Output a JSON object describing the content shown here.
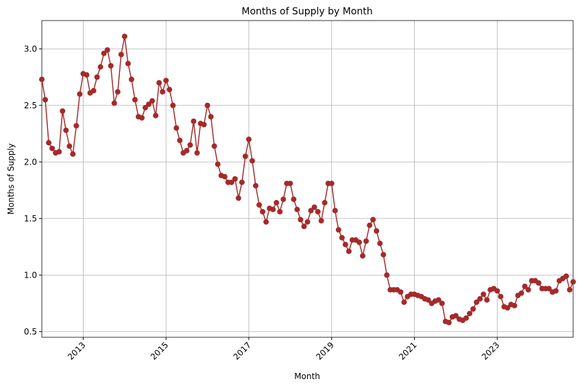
{
  "chart_data": {
    "type": "line",
    "title": "Months of Supply by Month",
    "x_label": "Month",
    "y_label": "Months of Supply",
    "color": "#a52a2a",
    "grid": true,
    "x": [
      "2012-01",
      "2012-02",
      "2012-03",
      "2012-04",
      "2012-05",
      "2012-06",
      "2012-07",
      "2012-08",
      "2012-09",
      "2012-10",
      "2012-11",
      "2012-12",
      "2013-01",
      "2013-02",
      "2013-03",
      "2013-04",
      "2013-05",
      "2013-06",
      "2013-07",
      "2013-08",
      "2013-09",
      "2013-10",
      "2013-11",
      "2013-12",
      "2014-01",
      "2014-02",
      "2014-03",
      "2014-04",
      "2014-05",
      "2014-06",
      "2014-07",
      "2014-08",
      "2014-09",
      "2014-10",
      "2014-11",
      "2014-12",
      "2015-01",
      "2015-02",
      "2015-03",
      "2015-04",
      "2015-05",
      "2015-06",
      "2015-07",
      "2015-08",
      "2015-09",
      "2015-10",
      "2015-11",
      "2015-12",
      "2016-01",
      "2016-02",
      "2016-03",
      "2016-04",
      "2016-05",
      "2016-06",
      "2016-07",
      "2016-08",
      "2016-09",
      "2016-10",
      "2016-11",
      "2016-12",
      "2017-01",
      "2017-02",
      "2017-03",
      "2017-04",
      "2017-05",
      "2017-06",
      "2017-07",
      "2017-08",
      "2017-09",
      "2017-10",
      "2017-11",
      "2017-12",
      "2018-01",
      "2018-02",
      "2018-03",
      "2018-04",
      "2018-05",
      "2018-06",
      "2018-07",
      "2018-08",
      "2018-09",
      "2018-10",
      "2018-11",
      "2018-12",
      "2019-01",
      "2019-02",
      "2019-03",
      "2019-04",
      "2019-05",
      "2019-06",
      "2019-07",
      "2019-08",
      "2019-09",
      "2019-10",
      "2019-11",
      "2019-12",
      "2020-01",
      "2020-02",
      "2020-03",
      "2020-04",
      "2020-05",
      "2020-06",
      "2020-07",
      "2020-08",
      "2020-09",
      "2020-10",
      "2020-11",
      "2020-12",
      "2021-01",
      "2021-02",
      "2021-03",
      "2021-04",
      "2021-05",
      "2021-06",
      "2021-07",
      "2021-08",
      "2021-09",
      "2021-10",
      "2021-11",
      "2021-12",
      "2022-01",
      "2022-02",
      "2022-03",
      "2022-04",
      "2022-05",
      "2022-06",
      "2022-07",
      "2022-08",
      "2022-09",
      "2022-10",
      "2022-11",
      "2022-12",
      "2023-01",
      "2023-02",
      "2023-03",
      "2023-04",
      "2023-05",
      "2023-06",
      "2023-07",
      "2023-08",
      "2023-09",
      "2023-10",
      "2023-11",
      "2023-12",
      "2024-01",
      "2024-02",
      "2024-03",
      "2024-04",
      "2024-05",
      "2024-06",
      "2024-07",
      "2024-08",
      "2024-09",
      "2024-10",
      "2024-11"
    ],
    "values": [
      2.73,
      2.55,
      2.17,
      2.12,
      2.08,
      2.09,
      2.45,
      2.28,
      2.14,
      2.07,
      2.32,
      2.6,
      2.78,
      2.77,
      2.61,
      2.63,
      2.75,
      2.84,
      2.96,
      2.99,
      2.85,
      2.52,
      2.62,
      2.95,
      3.11,
      2.87,
      2.73,
      2.55,
      2.4,
      2.39,
      2.48,
      2.51,
      2.54,
      2.41,
      2.7,
      2.62,
      2.72,
      2.64,
      2.5,
      2.3,
      2.19,
      2.08,
      2.1,
      2.15,
      2.36,
      2.08,
      2.34,
      2.33,
      2.5,
      2.4,
      2.14,
      1.98,
      1.88,
      1.87,
      1.82,
      1.82,
      1.85,
      1.68,
      1.82,
      2.05,
      2.2,
      2.01,
      1.79,
      1.62,
      1.56,
      1.47,
      1.59,
      1.58,
      1.64,
      1.56,
      1.67,
      1.81,
      1.81,
      1.67,
      1.58,
      1.49,
      1.43,
      1.47,
      1.57,
      1.6,
      1.56,
      1.48,
      1.64,
      1.81,
      1.81,
      1.57,
      1.4,
      1.33,
      1.27,
      1.21,
      1.31,
      1.31,
      1.29,
      1.17,
      1.3,
      1.44,
      1.49,
      1.39,
      1.28,
      1.18,
      1.0,
      0.87,
      0.87,
      0.87,
      0.85,
      0.76,
      0.81,
      0.83,
      0.83,
      0.82,
      0.81,
      0.79,
      0.78,
      0.75,
      0.77,
      0.78,
      0.75,
      0.59,
      0.58,
      0.63,
      0.64,
      0.61,
      0.6,
      0.62,
      0.66,
      0.7,
      0.76,
      0.79,
      0.83,
      0.78,
      0.87,
      0.88,
      0.86,
      0.81,
      0.72,
      0.71,
      0.74,
      0.73,
      0.82,
      0.84,
      0.9,
      0.87,
      0.95,
      0.95,
      0.93,
      0.88,
      0.88,
      0.88,
      0.85,
      0.86,
      0.95,
      0.97,
      0.99,
      0.87,
      0.94
    ],
    "xlim": [
      "2012-01",
      "2024-11"
    ],
    "xticks": [
      {
        "value": "2013-01",
        "label": "2013"
      },
      {
        "value": "2015-01",
        "label": "2015"
      },
      {
        "value": "2017-01",
        "label": "2017"
      },
      {
        "value": "2019-01",
        "label": "2019"
      },
      {
        "value": "2021-01",
        "label": "2021"
      },
      {
        "value": "2023-01",
        "label": "2023"
      }
    ],
    "ylim": [
      0.45,
      3.25
    ],
    "yticks": [
      0.5,
      {
        "value": 1,
        "label": "1.0"
      },
      1.5,
      {
        "value": 2,
        "label": "2.0"
      },
      2.5,
      {
        "value": 3,
        "label": "3.0"
      }
    ]
  }
}
